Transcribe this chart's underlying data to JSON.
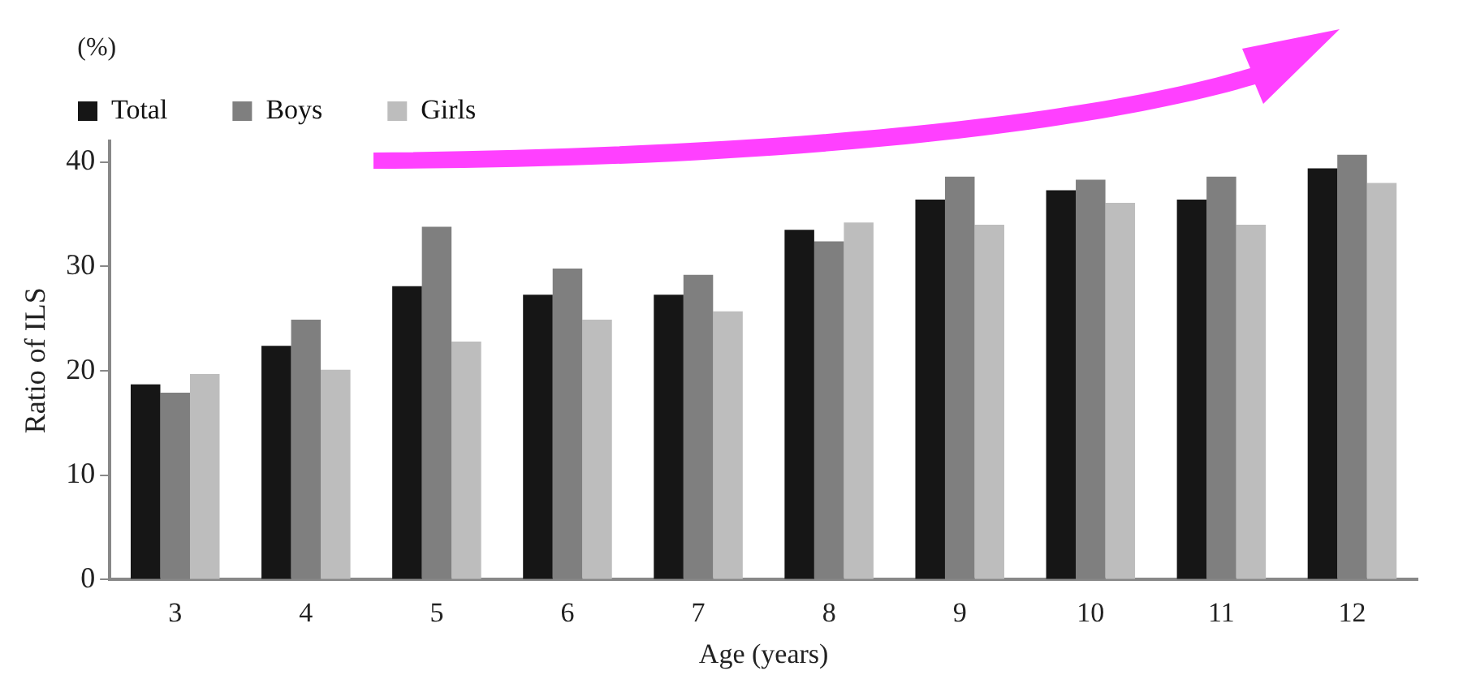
{
  "chart_data": {
    "type": "bar",
    "xlabel": "Age (years)",
    "ylabel": "Ratio of ILS",
    "annotations": [
      "(%)"
    ],
    "categories": [
      "3",
      "4",
      "5",
      "6",
      "7",
      "8",
      "9",
      "10",
      "11",
      "12"
    ],
    "series": [
      {
        "name": "Total",
        "color": "#161616",
        "values": [
          18.7,
          22.4,
          28.1,
          27.3,
          27.3,
          33.5,
          36.4,
          37.3,
          36.4,
          39.4
        ]
      },
      {
        "name": "Boys",
        "color": "#7f7f7f",
        "values": [
          17.9,
          24.9,
          33.8,
          29.8,
          29.2,
          32.4,
          38.6,
          38.3,
          38.6,
          40.7
        ]
      },
      {
        "name": "Girls",
        "color": "#bdbdbd",
        "values": [
          19.7,
          20.1,
          22.8,
          24.9,
          25.7,
          34.2,
          34.0,
          36.1,
          34.0,
          38.0
        ]
      }
    ],
    "ylim": [
      0,
      42
    ],
    "yticks": [
      0,
      10,
      20,
      30,
      40
    ],
    "grid": false,
    "legend": "top left"
  }
}
